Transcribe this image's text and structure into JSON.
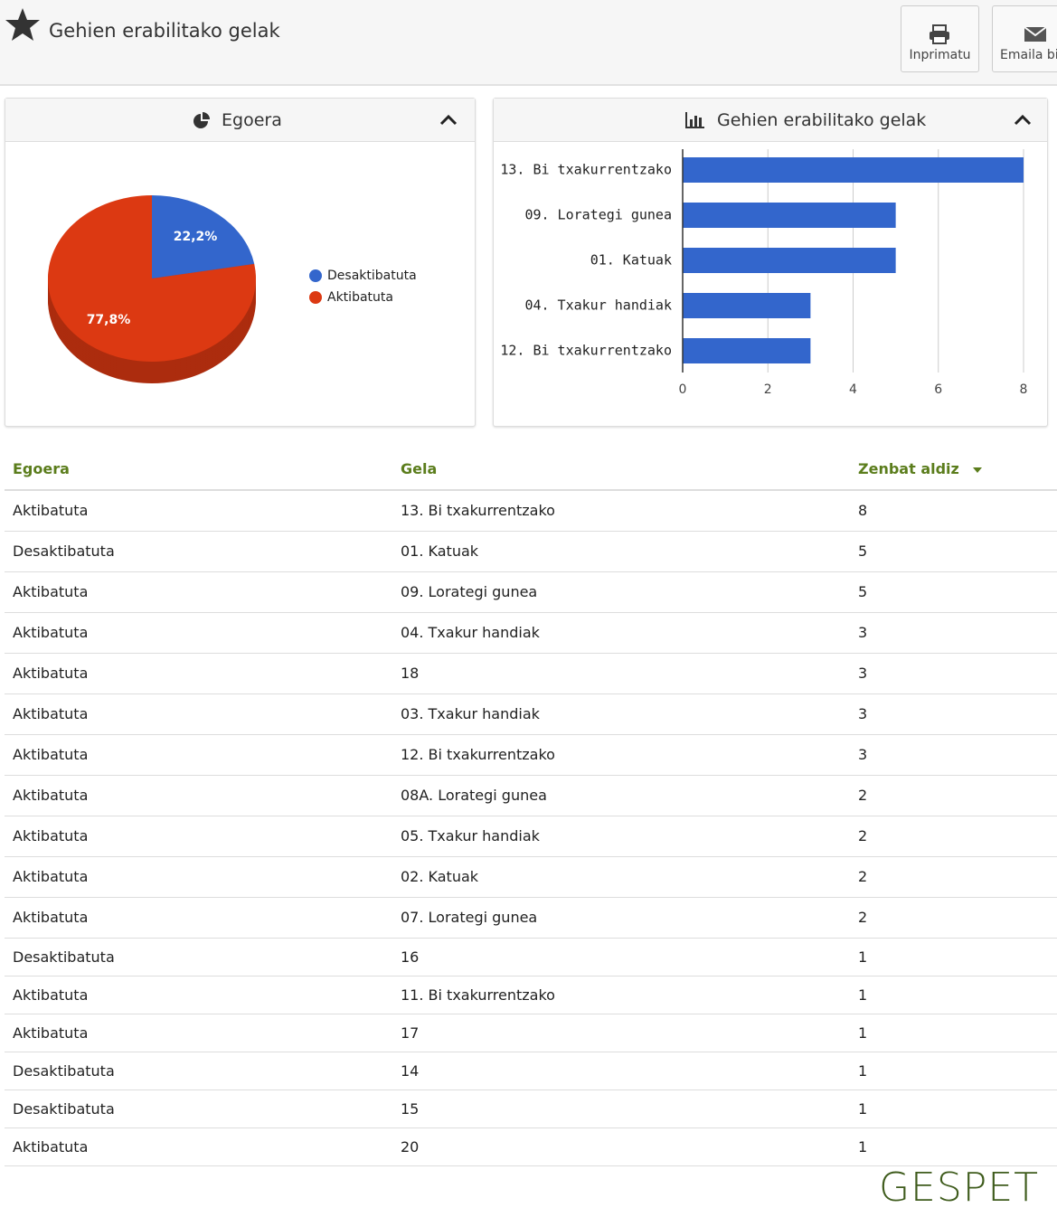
{
  "header": {
    "title": "Gehien erabilitako gelak",
    "buttons": [
      "Inprimatu",
      "Emaila bidali"
    ]
  },
  "chart_data": [
    {
      "type": "pie",
      "title": "Egoera",
      "categories": [
        "Desaktibatuta",
        "Aktibatuta"
      ],
      "values": [
        22.2,
        77.8
      ],
      "value_labels": [
        "22,2%",
        "77,8%"
      ],
      "colors": [
        "#3366cc",
        "#dc3912"
      ],
      "legend": "right"
    },
    {
      "type": "bar",
      "orientation": "horizontal",
      "title": "Gehien erabilitako gelak",
      "categories": [
        "13. Bi txakurrentzako",
        "09. Lorategi gunea",
        "01. Katuak",
        "04. Txakur handiak",
        "12. Bi txakurrentzako"
      ],
      "values": [
        8,
        5,
        5,
        3,
        3
      ],
      "color": "#3366cc",
      "xlim": [
        0,
        8
      ],
      "xticks": [
        0,
        2,
        4,
        6,
        8
      ],
      "grid": true
    }
  ],
  "table": {
    "columns": [
      "Egoera",
      "Gela",
      "Zenbat aldiz"
    ],
    "rows": [
      [
        "Aktibatuta",
        "13. Bi txakurrentzako",
        "8"
      ],
      [
        "Desaktibatuta",
        "01. Katuak",
        "5"
      ],
      [
        "Aktibatuta",
        "09. Lorategi gunea",
        "5"
      ],
      [
        "Aktibatuta",
        "04. Txakur handiak",
        "3"
      ],
      [
        "Aktibatuta",
        "18",
        "3"
      ],
      [
        "Aktibatuta",
        "03. Txakur handiak",
        "3"
      ],
      [
        "Aktibatuta",
        "12. Bi txakurrentzako",
        "3"
      ],
      [
        "Aktibatuta",
        "08A. Lorategi gunea",
        "2"
      ],
      [
        "Aktibatuta",
        "05. Txakur handiak",
        "2"
      ],
      [
        "Aktibatuta",
        "02. Katuak",
        "2"
      ],
      [
        "Aktibatuta",
        "07. Lorategi gunea",
        "2"
      ],
      [
        "Desaktibatuta",
        "16",
        "1"
      ],
      [
        "Aktibatuta",
        "11. Bi txakurrentzako",
        "1"
      ],
      [
        "Aktibatuta",
        "17",
        "1"
      ],
      [
        "Desaktibatuta",
        "14",
        "1"
      ],
      [
        "Desaktibatuta",
        "15",
        "1"
      ],
      [
        "Aktibatuta",
        "20",
        "1"
      ]
    ]
  },
  "footer": {
    "logo": "GESPET"
  }
}
